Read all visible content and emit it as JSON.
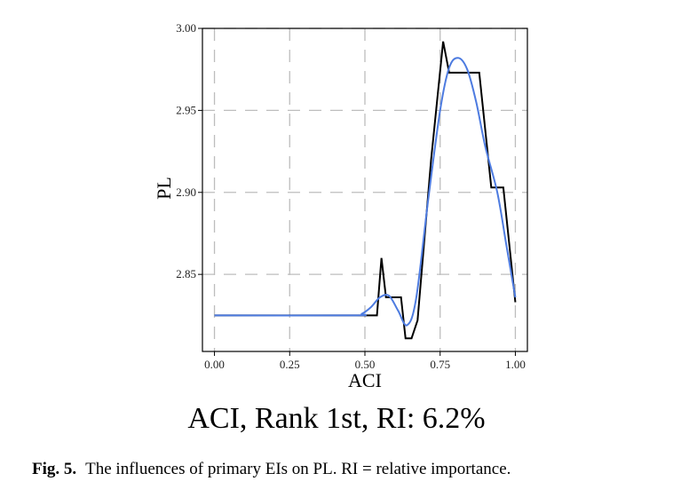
{
  "chart_data": {
    "type": "line",
    "xlabel": "ACI",
    "ylabel": "PL",
    "xlim": [
      -0.04,
      1.04
    ],
    "ylim": [
      2.803,
      3.0
    ],
    "x_ticks": [
      "0.00",
      "0.25",
      "0.50",
      "0.75",
      "1.00"
    ],
    "y_ticks": [
      "2.85",
      "2.90",
      "2.95",
      "3.00"
    ],
    "grid": "dashed",
    "colors": {
      "actual": "#000000",
      "smooth": "#4d7be0",
      "grid": "#bdbdbd"
    },
    "series": [
      {
        "color": "#000000",
        "points": [
          [
            0.0,
            2.825
          ],
          [
            0.54,
            2.825
          ],
          [
            0.555,
            2.86
          ],
          [
            0.57,
            2.836
          ],
          [
            0.62,
            2.836
          ],
          [
            0.635,
            2.811
          ],
          [
            0.655,
            2.811
          ],
          [
            0.675,
            2.822
          ],
          [
            0.72,
            2.92
          ],
          [
            0.76,
            2.992
          ],
          [
            0.78,
            2.973
          ],
          [
            0.88,
            2.973
          ],
          [
            0.92,
            2.903
          ],
          [
            0.96,
            2.903
          ],
          [
            1.0,
            2.833
          ]
        ]
      },
      {
        "color": "#4d7be0",
        "points": [
          [
            0.0,
            2.825
          ],
          [
            0.46,
            2.825
          ],
          [
            0.49,
            2.826
          ],
          [
            0.52,
            2.83
          ],
          [
            0.55,
            2.836
          ],
          [
            0.58,
            2.837
          ],
          [
            0.61,
            2.828
          ],
          [
            0.64,
            2.819
          ],
          [
            0.67,
            2.835
          ],
          [
            0.71,
            2.895
          ],
          [
            0.75,
            2.95
          ],
          [
            0.78,
            2.976
          ],
          [
            0.81,
            2.982
          ],
          [
            0.84,
            2.975
          ],
          [
            0.87,
            2.955
          ],
          [
            0.9,
            2.928
          ],
          [
            0.94,
            2.9
          ],
          [
            0.97,
            2.868
          ],
          [
            1.0,
            2.836
          ]
        ]
      }
    ]
  },
  "subtitle": "ACI, Rank 1st, RI: 6.2%",
  "caption": {
    "prefix": "Fig. 5.",
    "text": "The influences of primary EIs on PL. RI = relative importance."
  }
}
